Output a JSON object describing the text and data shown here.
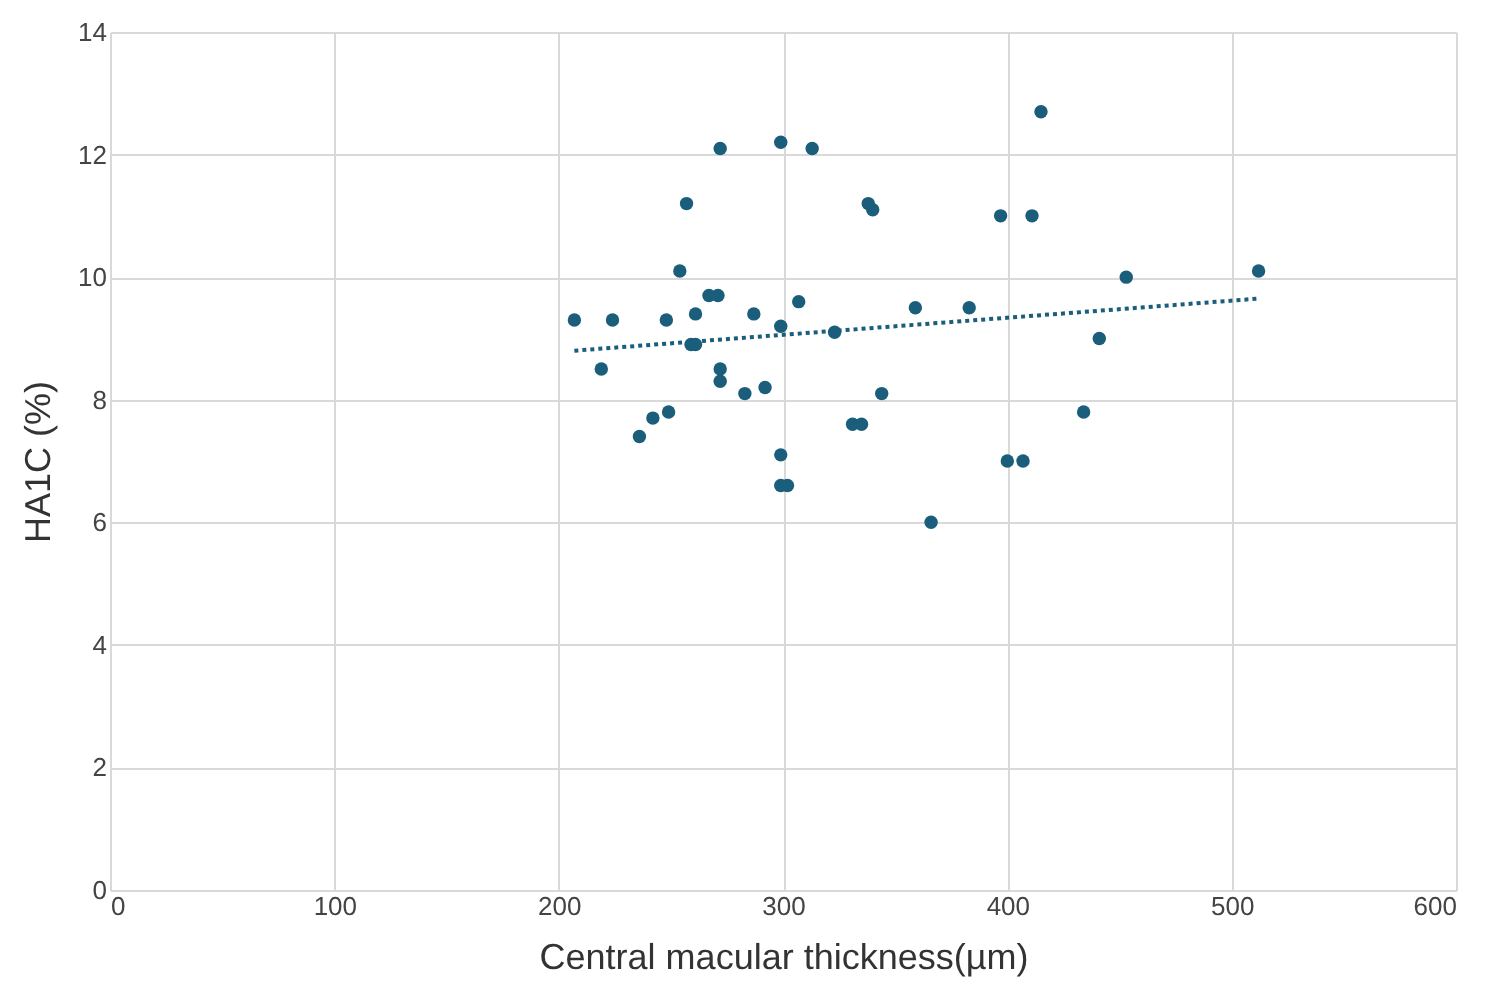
{
  "chart_data": {
    "type": "scatter",
    "xlabel": "Central macular thickness(µm)",
    "ylabel": "HA1C (%)",
    "xlim": [
      0,
      600
    ],
    "xticks": [
      0,
      100,
      200,
      300,
      400,
      500,
      600
    ],
    "ylim": [
      0,
      14
    ],
    "yticks": [
      0,
      2,
      4,
      6,
      8,
      10,
      12,
      14
    ],
    "grid": true,
    "series": [
      {
        "marker": "circle",
        "color": "#1b5e7b",
        "x": [
          207,
          219,
          224,
          236,
          242,
          248,
          249,
          254,
          257,
          259,
          261,
          261,
          267,
          271,
          272,
          272,
          272,
          283,
          287,
          292,
          299,
          299,
          299,
          299,
          302,
          307,
          313,
          323,
          331,
          335,
          338,
          340,
          344,
          359,
          366,
          383,
          397,
          400,
          407,
          411,
          415,
          434,
          441,
          453,
          512
        ],
        "values": [
          9.3,
          8.5,
          9.3,
          7.4,
          7.7,
          9.3,
          7.8,
          10.1,
          11.2,
          8.9,
          8.9,
          9.4,
          9.7,
          9.7,
          8.5,
          8.3,
          12.1,
          8.1,
          9.4,
          8.2,
          12.2,
          9.2,
          7.1,
          6.6,
          6.6,
          9.6,
          12.1,
          9.1,
          7.6,
          7.6,
          11.2,
          11.1,
          8.1,
          9.5,
          6.0,
          9.5,
          11.0,
          7.0,
          7.0,
          11.0,
          12.7,
          7.8,
          9.0,
          10.0,
          10.1
        ]
      },
      {
        "type": "line",
        "marker": "none",
        "color": "#1b5e7b",
        "line_style": "dotted",
        "x": [
          207,
          512
        ],
        "values": [
          8.8,
          9.65
        ]
      }
    ]
  }
}
